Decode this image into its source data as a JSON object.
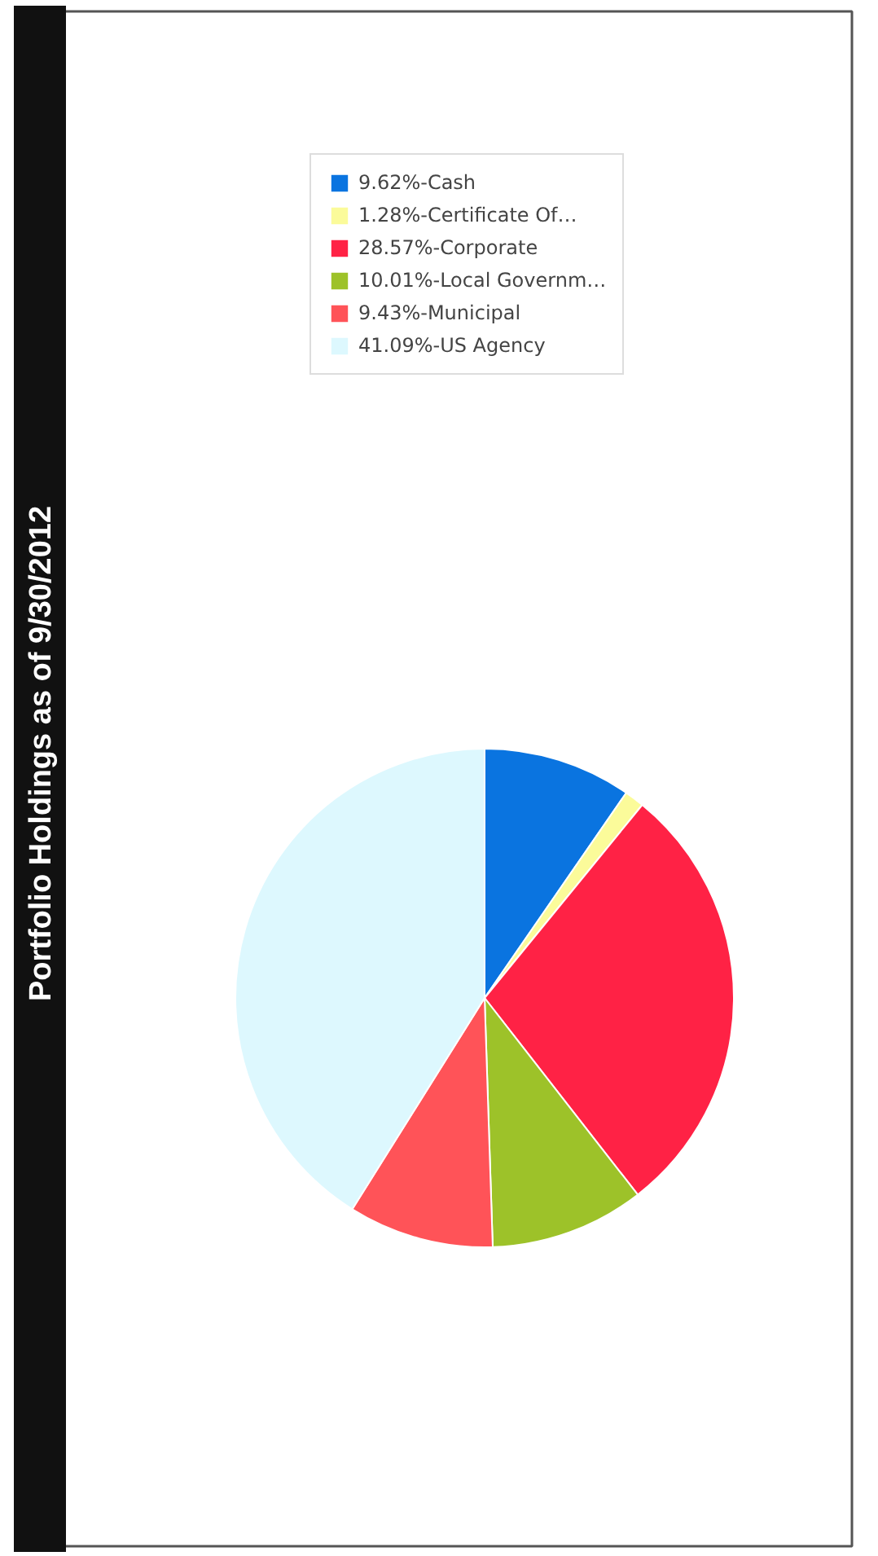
{
  "chart_data": {
    "type": "pie",
    "title": "Portfolio Holdings as of 9/30/2012",
    "categories": [
      "9.62%-Cash",
      "1.28%-Certificate Of…",
      "28.57%-Corporate",
      "10.01%-Local Governm…",
      "9.43%-Municipal",
      "41.09%-US Agency"
    ],
    "values": [
      9.62,
      1.28,
      28.57,
      10.01,
      9.43,
      41.09
    ],
    "colors": [
      "#0a74e0",
      "#fbfb9a",
      "#ff2245",
      "#9dc229",
      "#ff5358",
      "#ddf8fe"
    ],
    "legend": "top"
  }
}
